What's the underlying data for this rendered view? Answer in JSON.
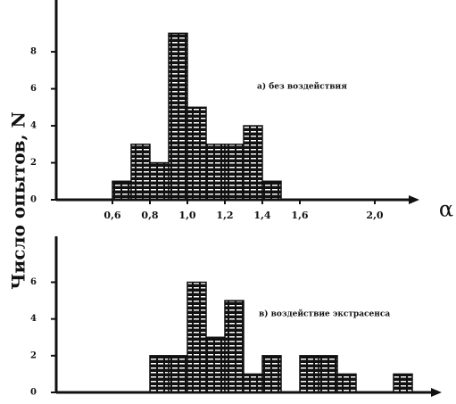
{
  "chart_data": [
    {
      "type": "histogram",
      "ylabel": "Число опытов, N",
      "xlabel": "α",
      "annotation": "а) без воздействия",
      "bins": [
        0.6,
        0.7,
        0.8,
        0.9,
        1.0,
        1.1,
        1.2,
        1.3,
        1.4,
        1.5
      ],
      "values": [
        1,
        3,
        2,
        9,
        5,
        3,
        3,
        4,
        1
      ],
      "color": "#111111",
      "xlim": [
        0.3,
        2.2
      ],
      "ylim": [
        0,
        10.8
      ],
      "xticks": [
        {
          "value": 0.6,
          "label": "0,6"
        },
        {
          "value": 0.8,
          "label": "0,8"
        },
        {
          "value": 1.0,
          "label": "1,0"
        },
        {
          "value": 1.2,
          "label": "1,2"
        },
        {
          "value": 1.4,
          "label": "1,4"
        },
        {
          "value": 1.6,
          "label": "1,6"
        },
        {
          "value": 2.0,
          "label": "2,0"
        }
      ],
      "yticks": [
        0,
        2,
        4,
        6,
        8
      ]
    },
    {
      "type": "histogram",
      "annotation": "в) воздействие экстрасенса",
      "bins": [
        0.8,
        0.9,
        1.0,
        1.1,
        1.2,
        1.3,
        1.4,
        1.5,
        1.6,
        1.7,
        1.8,
        1.9,
        2.0,
        2.1,
        2.2
      ],
      "values": [
        2,
        2,
        6,
        3,
        5,
        1,
        2,
        0,
        2,
        2,
        1,
        0,
        0,
        1
      ],
      "color": "#111111",
      "xlim": [
        0.3,
        2.2
      ],
      "ylim": [
        0,
        8.5
      ],
      "yticks": [
        0,
        2,
        4,
        6
      ]
    }
  ]
}
